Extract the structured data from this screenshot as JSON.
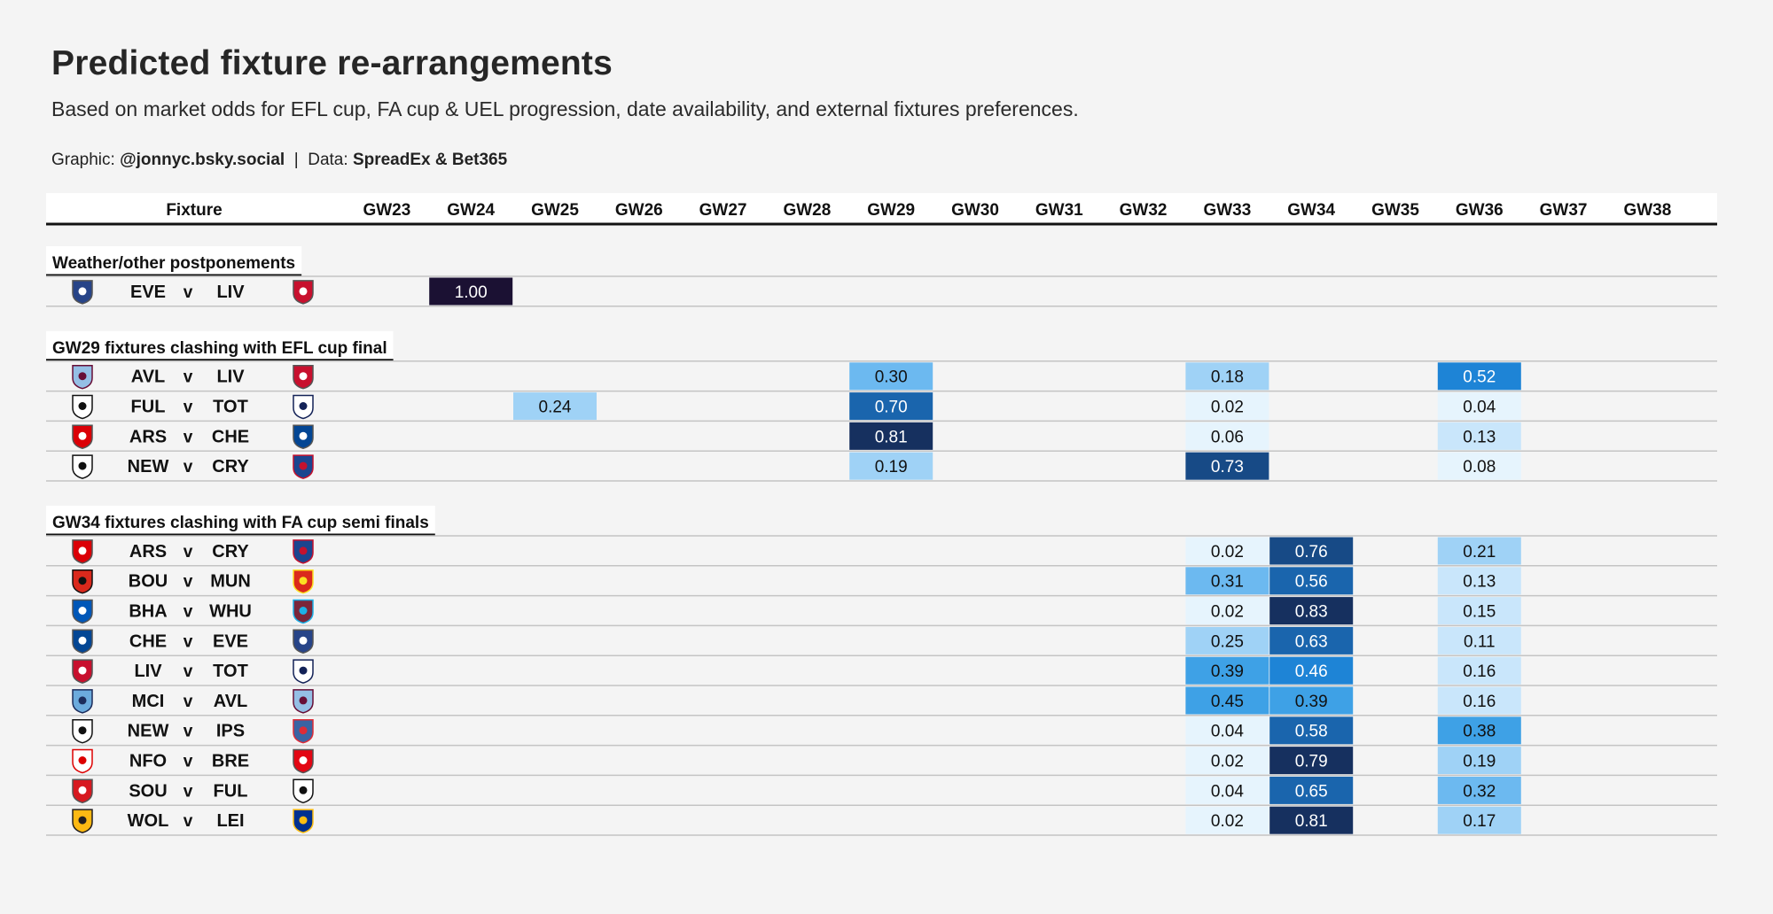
{
  "header": {
    "title": "Predicted fixture re-arrangements",
    "subtitle": "Based on market odds for EFL cup, FA cup & UEL progression, date availability, and external fixtures preferences.",
    "credit_graphic_label": "Graphic:",
    "credit_graphic_value": "@jonnyc.bsky.social",
    "credit_separator": "|",
    "credit_data_label": "Data:",
    "credit_data_value": "SpreadEx & Bet365"
  },
  "colors": {
    "background": "#f4f4f4",
    "scale": [
      "#e6f4fd",
      "#c9e6fb",
      "#9fd2f6",
      "#6cb9f0",
      "#3ea1e6",
      "#1e84d6",
      "#1a65ad",
      "#174a86",
      "#16305f",
      "#1b1133"
    ]
  },
  "chart_data": {
    "type": "heatmap",
    "fixture_column_label": "Fixture",
    "versus_label": "v",
    "columns": [
      "GW23",
      "GW24",
      "GW25",
      "GW26",
      "GW27",
      "GW28",
      "GW29",
      "GW30",
      "GW31",
      "GW32",
      "GW33",
      "GW34",
      "GW35",
      "GW36",
      "GW37",
      "GW38"
    ],
    "sections": [
      {
        "title": "Weather/other postponements",
        "rows": [
          {
            "home": "EVE",
            "away": "LIV",
            "home_icon": "everton-crest-icon",
            "away_icon": "liverpool-crest-icon",
            "values": {
              "GW24": 1.0
            }
          }
        ]
      },
      {
        "title": "GW29 fixtures clashing with EFL cup final",
        "rows": [
          {
            "home": "AVL",
            "away": "LIV",
            "home_icon": "aston-villa-crest-icon",
            "away_icon": "liverpool-crest-icon",
            "values": {
              "GW29": 0.3,
              "GW33": 0.18,
              "GW36": 0.52
            }
          },
          {
            "home": "FUL",
            "away": "TOT",
            "home_icon": "fulham-crest-icon",
            "away_icon": "tottenham-crest-icon",
            "values": {
              "GW25": 0.24,
              "GW29": 0.7,
              "GW33": 0.02,
              "GW36": 0.04
            }
          },
          {
            "home": "ARS",
            "away": "CHE",
            "home_icon": "arsenal-crest-icon",
            "away_icon": "chelsea-crest-icon",
            "values": {
              "GW29": 0.81,
              "GW33": 0.06,
              "GW36": 0.13
            }
          },
          {
            "home": "NEW",
            "away": "CRY",
            "home_icon": "newcastle-crest-icon",
            "away_icon": "crystal-palace-crest-icon",
            "values": {
              "GW29": 0.19,
              "GW33": 0.73,
              "GW36": 0.08
            }
          }
        ]
      },
      {
        "title": "GW34 fixtures clashing with FA cup semi finals",
        "rows": [
          {
            "home": "ARS",
            "away": "CRY",
            "home_icon": "arsenal-crest-icon",
            "away_icon": "crystal-palace-crest-icon",
            "values": {
              "GW33": 0.02,
              "GW34": 0.76,
              "GW36": 0.21
            }
          },
          {
            "home": "BOU",
            "away": "MUN",
            "home_icon": "bournemouth-crest-icon",
            "away_icon": "man-united-crest-icon",
            "values": {
              "GW33": 0.31,
              "GW34": 0.56,
              "GW36": 0.13
            }
          },
          {
            "home": "BHA",
            "away": "WHU",
            "home_icon": "brighton-crest-icon",
            "away_icon": "west-ham-crest-icon",
            "values": {
              "GW33": 0.02,
              "GW34": 0.83,
              "GW36": 0.15
            }
          },
          {
            "home": "CHE",
            "away": "EVE",
            "home_icon": "chelsea-crest-icon",
            "away_icon": "everton-crest-icon",
            "values": {
              "GW33": 0.25,
              "GW34": 0.63,
              "GW36": 0.11
            }
          },
          {
            "home": "LIV",
            "away": "TOT",
            "home_icon": "liverpool-crest-icon",
            "away_icon": "tottenham-crest-icon",
            "values": {
              "GW33": 0.39,
              "GW34": 0.46,
              "GW36": 0.16
            }
          },
          {
            "home": "MCI",
            "away": "AVL",
            "home_icon": "man-city-crest-icon",
            "away_icon": "aston-villa-crest-icon",
            "values": {
              "GW33": 0.45,
              "GW34": 0.39,
              "GW36": 0.16
            }
          },
          {
            "home": "NEW",
            "away": "IPS",
            "home_icon": "newcastle-crest-icon",
            "away_icon": "ipswich-crest-icon",
            "values": {
              "GW33": 0.04,
              "GW34": 0.58,
              "GW36": 0.38
            }
          },
          {
            "home": "NFO",
            "away": "BRE",
            "home_icon": "nottingham-forest-crest-icon",
            "away_icon": "brentford-crest-icon",
            "values": {
              "GW33": 0.02,
              "GW34": 0.79,
              "GW36": 0.19
            }
          },
          {
            "home": "SOU",
            "away": "FUL",
            "home_icon": "southampton-crest-icon",
            "away_icon": "fulham-crest-icon",
            "values": {
              "GW33": 0.04,
              "GW34": 0.65,
              "GW36": 0.32
            }
          },
          {
            "home": "WOL",
            "away": "LEI",
            "home_icon": "wolves-crest-icon",
            "away_icon": "leicester-crest-icon",
            "values": {
              "GW33": 0.02,
              "GW34": 0.81,
              "GW36": 0.17
            }
          }
        ]
      }
    ]
  }
}
